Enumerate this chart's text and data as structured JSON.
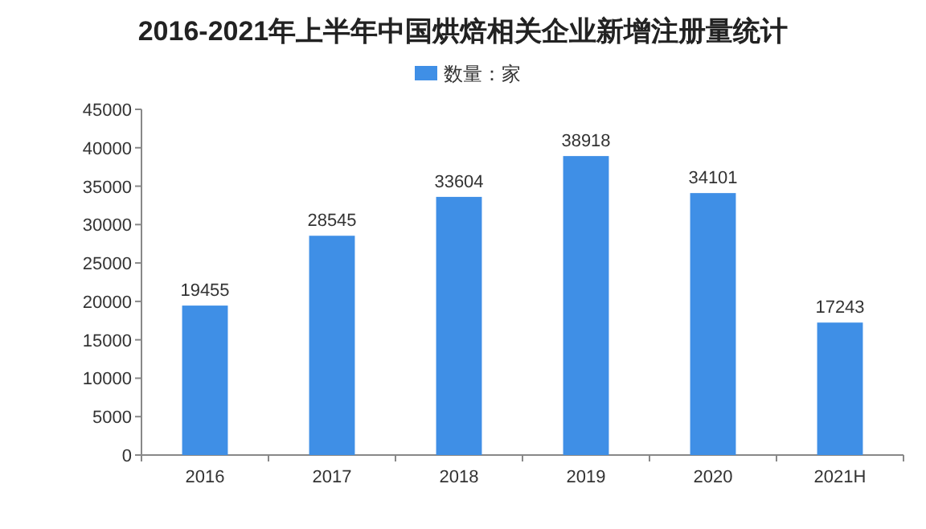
{
  "chart_data": {
    "type": "bar",
    "title": "2016-2021年上半年中国烘焙相关企业新增注册量统计",
    "categories": [
      "2016",
      "2017",
      "2018",
      "2019",
      "2020",
      "2021H"
    ],
    "series": [
      {
        "name": "数量：家",
        "color": "#3f8fe6",
        "values": [
          19455,
          28545,
          33604,
          38918,
          34101,
          17243
        ]
      }
    ],
    "ylim": [
      0,
      45000
    ],
    "yticks": [
      0,
      5000,
      10000,
      15000,
      20000,
      25000,
      30000,
      35000,
      40000,
      45000
    ],
    "data_labels": true,
    "legend": "top",
    "grid": false
  }
}
